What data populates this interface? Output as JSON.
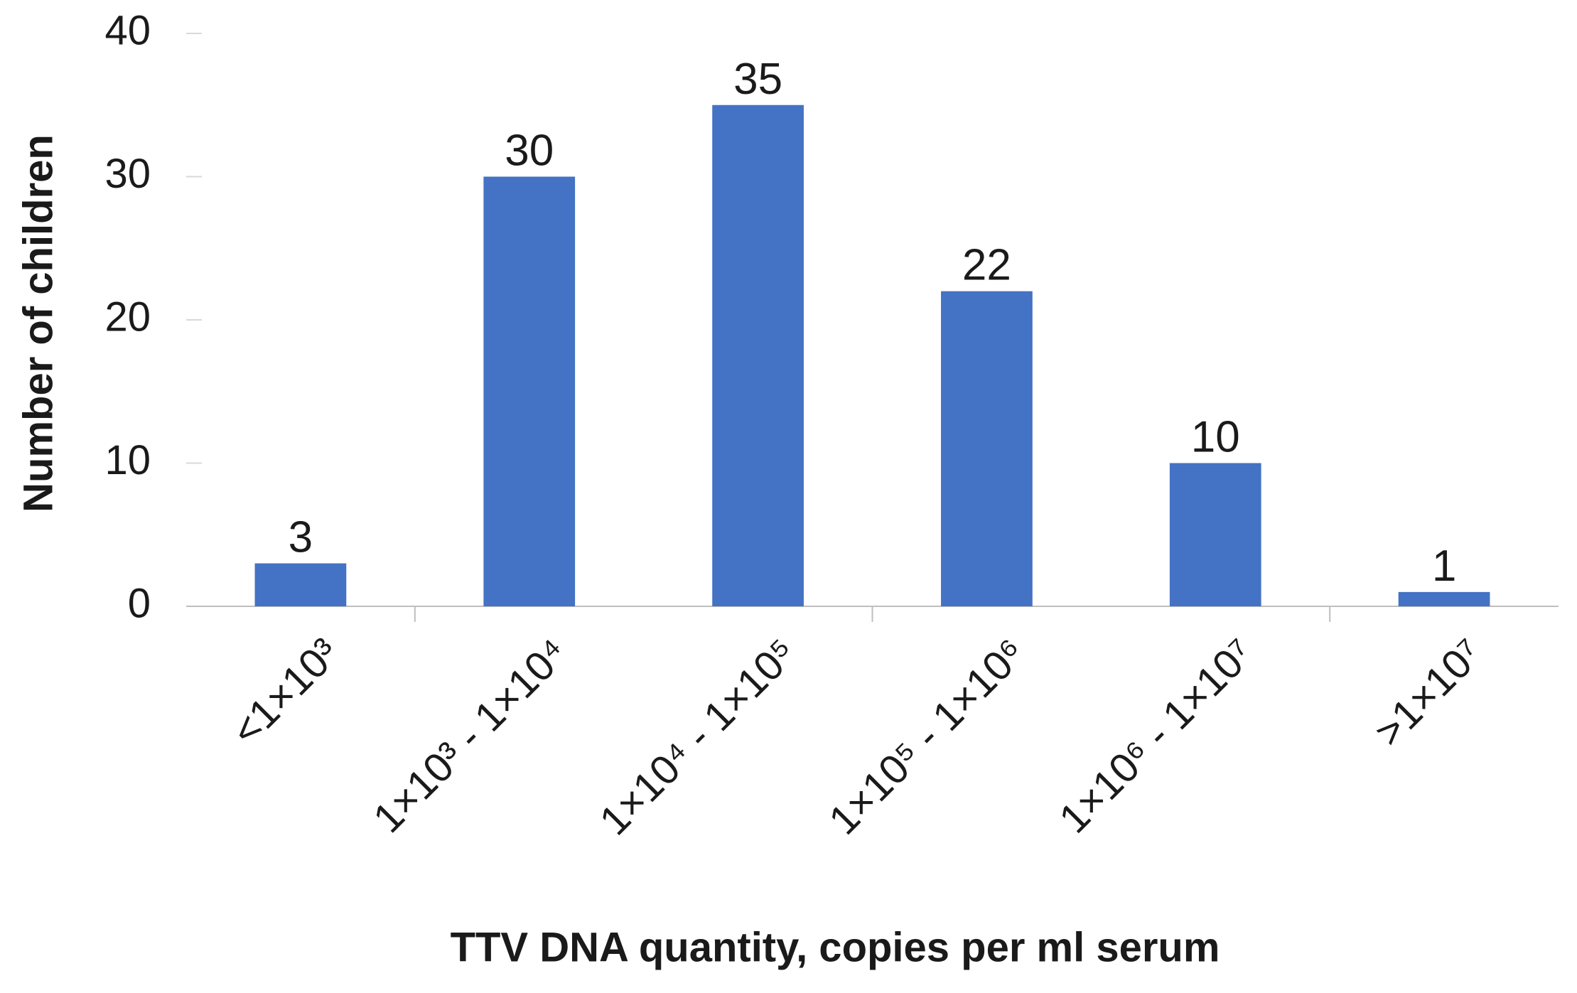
{
  "chart_data": {
    "type": "bar",
    "x_label": "TTV DNA quantity, copies per ml serum",
    "y_label": "Number of children",
    "categories": [
      "<1×10³",
      "1×10³ - 1×10⁴",
      "1×10⁴ - 1×10⁵",
      "1×10⁵ - 1×10⁶",
      "1×10⁶ - 1×10⁷",
      ">1×10⁷"
    ],
    "values": [
      3,
      30,
      35,
      22,
      10,
      1
    ],
    "color": "#4472c4",
    "ylim": [
      0,
      40
    ],
    "yticks": [
      0,
      10,
      20,
      30,
      40
    ],
    "grid": false
  }
}
